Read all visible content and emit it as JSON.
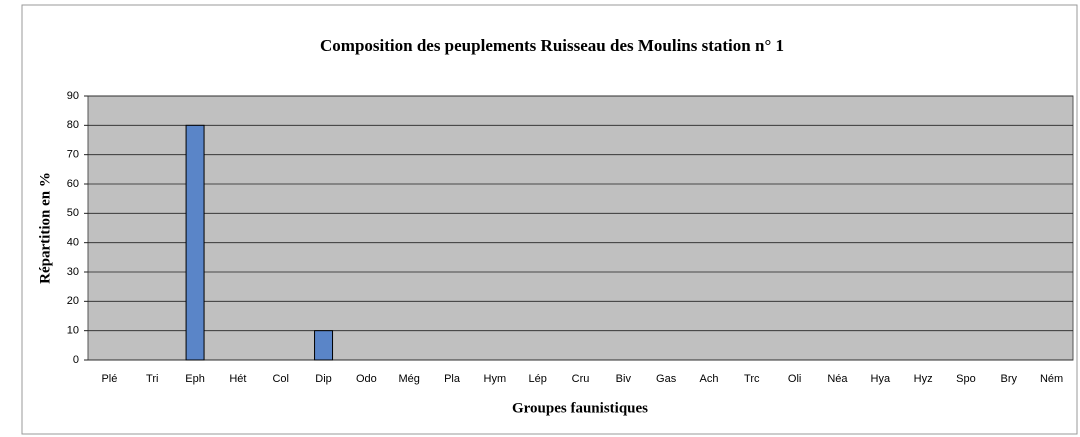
{
  "chart_data": {
    "type": "bar",
    "title": "Composition des peuplements  Ruisseau des Moulins station n° 1",
    "x_label": "Groupes faunistiques",
    "y_label": "Répartition en %",
    "categories": [
      "Plé",
      "Tri",
      "Eph",
      "Hét",
      "Col",
      "Dip",
      "Odo",
      "Még",
      "Pla",
      "Hym",
      "Lép",
      "Cru",
      "Biv",
      "Gas",
      "Ach",
      "Trc",
      "Oli",
      "Néa",
      "Hya",
      "Hyz",
      "Spo",
      "Bry",
      "Ném"
    ],
    "values": [
      0,
      0,
      80,
      0,
      0,
      10,
      0,
      0,
      0,
      0,
      0,
      0,
      0,
      0,
      0,
      0,
      0,
      0,
      0,
      0,
      0,
      0,
      0
    ],
    "color": "#5a85c8",
    "ylim": [
      0,
      90
    ],
    "yticks": [
      0,
      10,
      20,
      30,
      40,
      50,
      60,
      70,
      80,
      90
    ],
    "grid": true
  }
}
